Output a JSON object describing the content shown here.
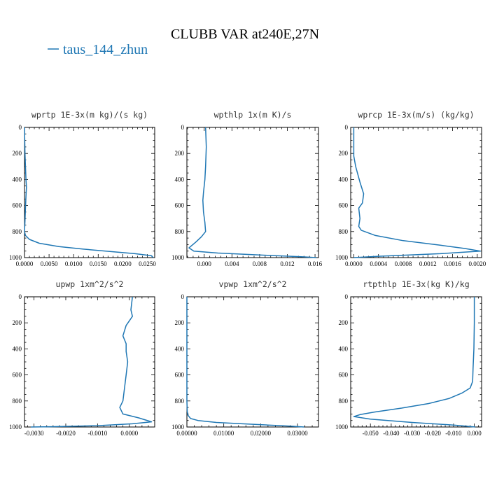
{
  "figure": {
    "title": "CLUBB VAR at240E,27N",
    "legend": "taus_144_zhun",
    "line_color": "#1f77b4"
  },
  "chart_data": [
    {
      "type": "line",
      "title": "wprtp  1E-3x(m kg)/(s kg)",
      "xlim": [
        0.0,
        0.0265
      ],
      "ylim": [
        1000,
        0
      ],
      "xticks": [
        0.0,
        0.005,
        0.01,
        0.015,
        0.02,
        0.025
      ],
      "xtick_labels": [
        "0.0000",
        "0.0050",
        "0.0100",
        "0.0150",
        "0.0200",
        "0.0250"
      ],
      "yticks": [
        0,
        200,
        400,
        600,
        800,
        1000
      ],
      "series": [
        {
          "x": [
            0.0,
            0.0001,
            0.0003,
            0.0004,
            0.0003,
            0.0002,
            0.0001,
            0.0,
            0.0002,
            0.001,
            0.003,
            0.007,
            0.012,
            0.018,
            0.0225,
            0.0258,
            0.0262
          ],
          "y": [
            0,
            200,
            400,
            460,
            530,
            620,
            720,
            800,
            830,
            860,
            890,
            915,
            935,
            955,
            970,
            985,
            1000
          ]
        }
      ]
    },
    {
      "type": "line",
      "title": "wpthlp  1x(m K)/s",
      "xlim": [
        -0.0025,
        0.0165
      ],
      "ylim": [
        1000,
        0
      ],
      "xticks": [
        0.0,
        0.004,
        0.008,
        0.012,
        0.016
      ],
      "xtick_labels": [
        "0.000",
        "0.004",
        "0.008",
        "0.012",
        "0.016"
      ],
      "yticks": [
        0,
        200,
        400,
        600,
        800,
        1000
      ],
      "series": [
        {
          "x": [
            0.0002,
            0.0003,
            0.0002,
            0.0001,
            -0.0001,
            -0.0002,
            -0.0001,
            0.0001,
            0.0002,
            -0.0004,
            -0.0012,
            -0.0022,
            -0.0015,
            0.002,
            0.008,
            0.014,
            0.0162
          ],
          "y": [
            0,
            150,
            300,
            400,
            500,
            560,
            650,
            730,
            800,
            840,
            880,
            925,
            950,
            965,
            980,
            993,
            1000
          ]
        }
      ]
    },
    {
      "type": "line",
      "title": "wprcp  1E-3x(m/s) (kg/kg)",
      "xlim": [
        -5e-05,
        0.00207
      ],
      "ylim": [
        1000,
        0
      ],
      "xticks": [
        0.0,
        0.0004,
        0.0008,
        0.0012,
        0.0016,
        0.002
      ],
      "xtick_labels": [
        "0.0000",
        "0.0004",
        "0.0008",
        "0.0012",
        "0.0016",
        "0.0020"
      ],
      "yticks": [
        0,
        200,
        400,
        600,
        800,
        1000
      ],
      "series": [
        {
          "x": [
            0.0,
            0.0,
            3e-05,
            0.0001,
            0.00016,
            0.00014,
            8e-05,
            0.0001,
            8e-05,
            0.00012,
            0.00035,
            0.0008,
            0.0014,
            0.0018,
            0.00205,
            0.0014,
            0.0004,
            0.0
          ],
          "y": [
            0,
            220,
            300,
            420,
            510,
            580,
            620,
            700,
            760,
            790,
            830,
            870,
            905,
            930,
            950,
            970,
            990,
            1000
          ]
        }
      ]
    },
    {
      "type": "line",
      "title": "upwp  1xm^2/s^2",
      "xlim": [
        -0.0033,
        0.0008
      ],
      "ylim": [
        1000,
        0
      ],
      "xticks": [
        -0.003,
        -0.002,
        -0.001,
        0.0
      ],
      "xtick_labels": [
        "-0.0030",
        "-0.0020",
        "-0.0010",
        "0.0000"
      ],
      "yticks": [
        0,
        200,
        400,
        600,
        800,
        1000
      ],
      "series": [
        {
          "x": [
            0.0001,
            5e-05,
            0.0001,
            -0.0001,
            -0.0002,
            -0.0001,
            -0.0001,
            -5e-05,
            -0.0001,
            -0.00015,
            -0.0002,
            -0.0003,
            -0.0002,
            0.0003,
            0.0007,
            0.0001,
            -0.001,
            -0.0025,
            -0.0031
          ],
          "y": [
            0,
            100,
            150,
            220,
            300,
            360,
            420,
            500,
            600,
            700,
            800,
            850,
            900,
            930,
            960,
            975,
            990,
            998,
            1000
          ]
        }
      ]
    },
    {
      "type": "line",
      "title": "vpwp  1xm^2/s^2",
      "xlim": [
        0.0,
        0.0357
      ],
      "ylim": [
        1000,
        0
      ],
      "xticks": [
        0.0,
        0.01,
        0.02,
        0.03
      ],
      "xtick_labels": [
        "0.00000",
        "0.01000",
        "0.02000",
        "0.03000"
      ],
      "yticks": [
        0,
        200,
        400,
        600,
        800,
        1000
      ],
      "series": [
        {
          "x": [
            0.0,
            0.0,
            0.0,
            0.0001,
            0.0003,
            0.001,
            0.003,
            0.008,
            0.015,
            0.022,
            0.028,
            0.0318
          ],
          "y": [
            0,
            400,
            800,
            880,
            910,
            935,
            950,
            965,
            975,
            985,
            993,
            1000
          ]
        }
      ]
    },
    {
      "type": "line",
      "title": "rtpthlp  1E-3x(kg K)/kg",
      "xlim": [
        -0.0595,
        0.0035
      ],
      "ylim": [
        1000,
        0
      ],
      "xticks": [
        -0.05,
        -0.04,
        -0.03,
        -0.02,
        -0.01,
        0.0
      ],
      "xtick_labels": [
        "-0.050",
        "-0.040",
        "-0.030",
        "-0.020",
        "-0.010",
        "0.000"
      ],
      "yticks": [
        0,
        200,
        400,
        600,
        800,
        1000
      ],
      "series": [
        {
          "x": [
            0.0,
            0.0,
            -0.0002,
            -0.0006,
            -0.0008,
            -0.002,
            -0.006,
            -0.012,
            -0.022,
            -0.035,
            -0.048,
            -0.055,
            -0.058,
            -0.05,
            -0.03,
            -0.01,
            0.0005
          ],
          "y": [
            0,
            200,
            400,
            550,
            650,
            700,
            740,
            780,
            820,
            855,
            885,
            905,
            920,
            940,
            965,
            985,
            1000
          ]
        }
      ]
    }
  ]
}
